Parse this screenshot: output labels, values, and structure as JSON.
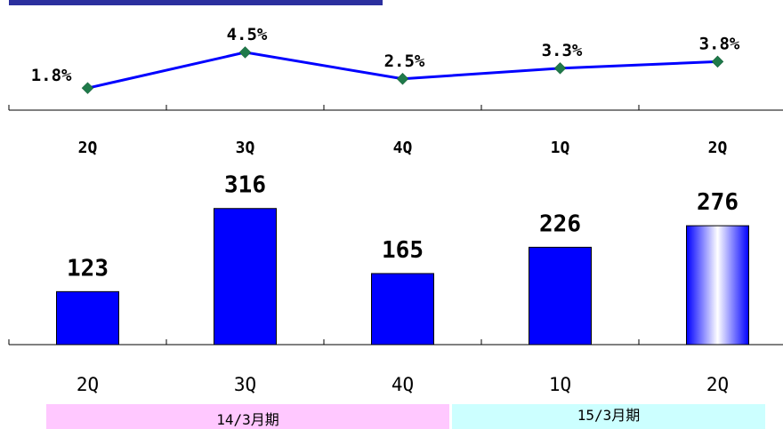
{
  "colors": {
    "header_bar": "#2b2f9e",
    "line": "#0000ff",
    "marker": "#1f7a4a",
    "bar": "#0000ff",
    "bar_outline": "#000000",
    "period_14": "#ffc8ff",
    "period_15": "#ccffff"
  },
  "periods": [
    {
      "label": "14/3月期",
      "from": 0,
      "to": 3
    },
    {
      "label": "15/3月期",
      "from": 3,
      "to": 5
    }
  ],
  "chart_data": [
    {
      "type": "line",
      "categories": [
        "2Q",
        "3Q",
        "4Q",
        "1Q",
        "2Q"
      ],
      "values": [
        1.8,
        4.5,
        2.5,
        3.3,
        3.8
      ],
      "value_labels": [
        "1.8%",
        "4.5%",
        "2.5%",
        "3.3%",
        "3.8%"
      ],
      "unit": "%",
      "grid": false
    },
    {
      "type": "bar",
      "categories": [
        "2Q",
        "3Q",
        "4Q",
        "1Q",
        "2Q"
      ],
      "values": [
        123,
        316,
        165,
        226,
        276
      ],
      "value_labels": [
        "123",
        "316",
        "165",
        "226",
        "276"
      ],
      "highlight_last": true,
      "grid": false
    }
  ]
}
